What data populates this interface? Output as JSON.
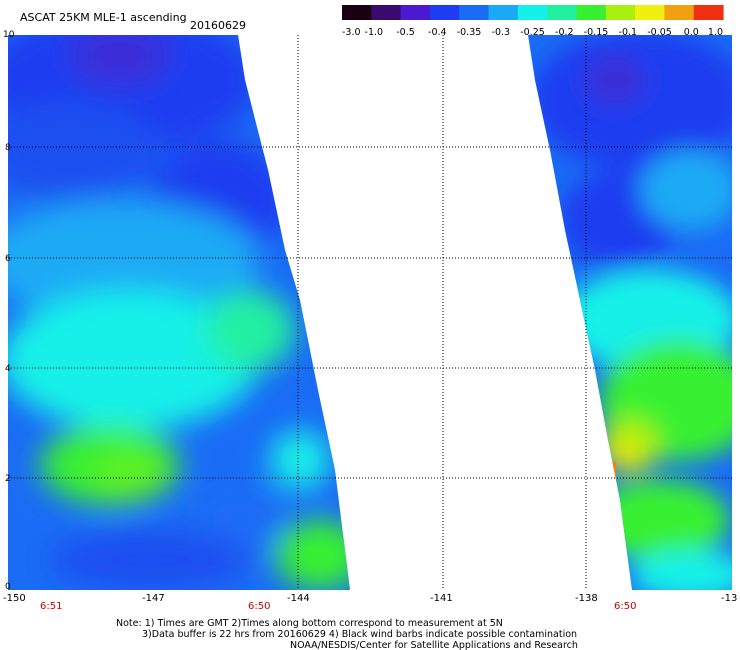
{
  "header": {
    "title": "ASCAT 25KM MLE-1 ascending",
    "date": "20160629"
  },
  "colorbar": {
    "labels": [
      "-3.0",
      "-1.0",
      "-0.5",
      "-0.4",
      "-0.35",
      "-0.3",
      "-0.25",
      "-0.2",
      "-0.15",
      "-0.1",
      "-0.05",
      "0.0",
      "1.0"
    ],
    "colors": [
      "#1a0010",
      "#3b0a6e",
      "#4b1ad0",
      "#1e3cf0",
      "#1a6cf5",
      "#1aaaf5",
      "#15f0e8",
      "#20f0a0",
      "#38f030",
      "#a8f010",
      "#f0f010",
      "#f0a010",
      "#f03010"
    ]
  },
  "axes": {
    "x_ticks": [
      "-150",
      "-147",
      "-144",
      "-141",
      "-138",
      "-13"
    ],
    "y_ticks": [
      "0",
      "2",
      "4",
      "6",
      "8",
      "10"
    ]
  },
  "times": [
    "6:51",
    "6:50",
    "6:50"
  ],
  "notes": {
    "line1": "Note: 1) Times are GMT 2)Times along bottom correspond to measurement at 5N",
    "line2": "3)Data buffer is 22 hrs from 20160629 4) Black wind barbs indicate possible contamination",
    "line3": "NOAA/NESDIS/Center for Satellite Applications and Research"
  }
}
